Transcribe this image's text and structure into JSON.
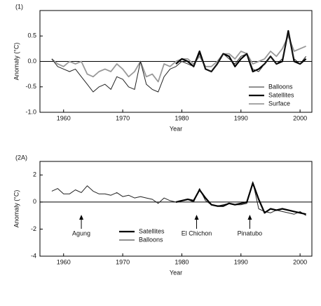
{
  "chart_data": [
    {
      "type": "line",
      "panel_label": "(1)",
      "ylabel": "Anomaly (°C)",
      "xlabel": "Year",
      "xlim": [
        1956,
        2002
      ],
      "xticks": [
        1960,
        1970,
        1980,
        1990,
        2000
      ],
      "ylim": [
        -1.0,
        1.0
      ],
      "yticks": [
        {
          "value": -1.0,
          "label": "-1.0"
        },
        -0.5,
        {
          "value": 0.0,
          "label": "0.0"
        },
        0.5
      ],
      "hline": 0,
      "legend": "lower right",
      "x": [
        1958,
        1959,
        1960,
        1961,
        1962,
        1963,
        1964,
        1965,
        1966,
        1967,
        1968,
        1969,
        1970,
        1971,
        1972,
        1973,
        1974,
        1975,
        1976,
        1977,
        1978,
        1979,
        1980,
        1981,
        1982,
        1983,
        1984,
        1985,
        1986,
        1987,
        1988,
        1989,
        1990,
        1991,
        1992,
        1993,
        1994,
        1995,
        1996,
        1997,
        1998,
        1999,
        2000,
        2001
      ],
      "series": [
        {
          "name": "Balloons",
          "color": "#222222",
          "linewidth": 1,
          "values": [
            0.05,
            -0.1,
            -0.15,
            -0.2,
            -0.15,
            -0.3,
            -0.45,
            -0.6,
            -0.5,
            -0.45,
            -0.55,
            -0.3,
            -0.35,
            -0.5,
            -0.55,
            0.0,
            -0.45,
            -0.55,
            -0.6,
            -0.3,
            -0.15,
            -0.1,
            0.0,
            -0.05,
            -0.1,
            0.15,
            -0.15,
            -0.2,
            -0.05,
            0.15,
            0.05,
            -0.05,
            0.1,
            0.15,
            -0.15,
            -0.2,
            -0.05,
            0.1,
            -0.05,
            0.05,
            0.55,
            0.05,
            -0.05,
            0.1
          ]
        },
        {
          "name": "Satellites",
          "color": "#000000",
          "linewidth": 2.2,
          "values": [
            null,
            null,
            null,
            null,
            null,
            null,
            null,
            null,
            null,
            null,
            null,
            null,
            null,
            null,
            null,
            null,
            null,
            null,
            null,
            null,
            null,
            -0.05,
            0.05,
            0.0,
            -0.1,
            0.2,
            -0.15,
            -0.2,
            -0.05,
            0.15,
            0.1,
            -0.1,
            0.05,
            0.15,
            -0.2,
            -0.15,
            -0.05,
            0.1,
            -0.05,
            0.0,
            0.6,
            0.0,
            -0.05,
            0.05
          ]
        },
        {
          "name": "Surface",
          "color": "#999999",
          "linewidth": 1.8,
          "values": [
            0.05,
            -0.05,
            -0.1,
            0.0,
            -0.05,
            0.0,
            -0.25,
            -0.3,
            -0.2,
            -0.15,
            -0.2,
            -0.05,
            -0.15,
            -0.3,
            -0.2,
            0.0,
            -0.3,
            -0.25,
            -0.4,
            -0.05,
            -0.1,
            0.0,
            0.05,
            0.05,
            -0.05,
            0.1,
            -0.1,
            -0.1,
            0.0,
            0.15,
            0.15,
            0.05,
            0.2,
            0.15,
            -0.05,
            0.0,
            0.05,
            0.2,
            0.1,
            0.25,
            0.5,
            0.2,
            0.25,
            0.3
          ]
        }
      ]
    },
    {
      "type": "line",
      "panel_label": "(2A)",
      "ylabel": "Anomaly (°C)",
      "xlabel": "Year",
      "xlim": [
        1956,
        2002
      ],
      "xticks": [
        1960,
        1970,
        1980,
        1990,
        2000
      ],
      "ylim": [
        -4,
        3
      ],
      "yticks": [
        -4,
        -2,
        0,
        2
      ],
      "hline": 0,
      "legend": "lower center",
      "x": [
        1958,
        1959,
        1960,
        1961,
        1962,
        1963,
        1964,
        1965,
        1966,
        1967,
        1968,
        1969,
        1970,
        1971,
        1972,
        1973,
        1974,
        1975,
        1976,
        1977,
        1978,
        1979,
        1980,
        1981,
        1982,
        1983,
        1984,
        1985,
        1986,
        1987,
        1988,
        1989,
        1990,
        1991,
        1992,
        1993,
        1994,
        1995,
        1996,
        1997,
        1998,
        1999,
        2000,
        2001
      ],
      "series": [
        {
          "name": "Satellites",
          "color": "#000000",
          "linewidth": 2.2,
          "values": [
            null,
            null,
            null,
            null,
            null,
            null,
            null,
            null,
            null,
            null,
            null,
            null,
            null,
            null,
            null,
            null,
            null,
            null,
            null,
            null,
            null,
            0.0,
            0.1,
            0.2,
            0.1,
            0.9,
            0.3,
            -0.2,
            -0.3,
            -0.3,
            -0.1,
            -0.2,
            -0.1,
            0.0,
            1.4,
            0.2,
            -0.8,
            -0.5,
            -0.6,
            -0.5,
            -0.6,
            -0.7,
            -0.8,
            -0.9
          ]
        },
        {
          "name": "Balloons",
          "color": "#222222",
          "linewidth": 1,
          "values": [
            0.8,
            1.0,
            0.6,
            0.6,
            0.9,
            0.7,
            1.2,
            0.8,
            0.6,
            0.6,
            0.5,
            0.7,
            0.4,
            0.5,
            0.3,
            0.4,
            0.3,
            0.2,
            -0.1,
            0.3,
            0.1,
            0.0,
            0.1,
            0.2,
            0.0,
            1.0,
            0.1,
            -0.2,
            -0.3,
            -0.2,
            -0.1,
            -0.2,
            -0.2,
            -0.1,
            1.5,
            -0.5,
            -0.7,
            -0.8,
            -0.6,
            -0.7,
            -0.8,
            -0.9,
            -0.7,
            -1.0
          ]
        }
      ],
      "annotations": [
        {
          "text": "Agung",
          "x": 1963
        },
        {
          "text": "El Chichon",
          "x": 1982.5
        },
        {
          "text": "Pinatubo",
          "x": 1991.5
        }
      ]
    }
  ]
}
